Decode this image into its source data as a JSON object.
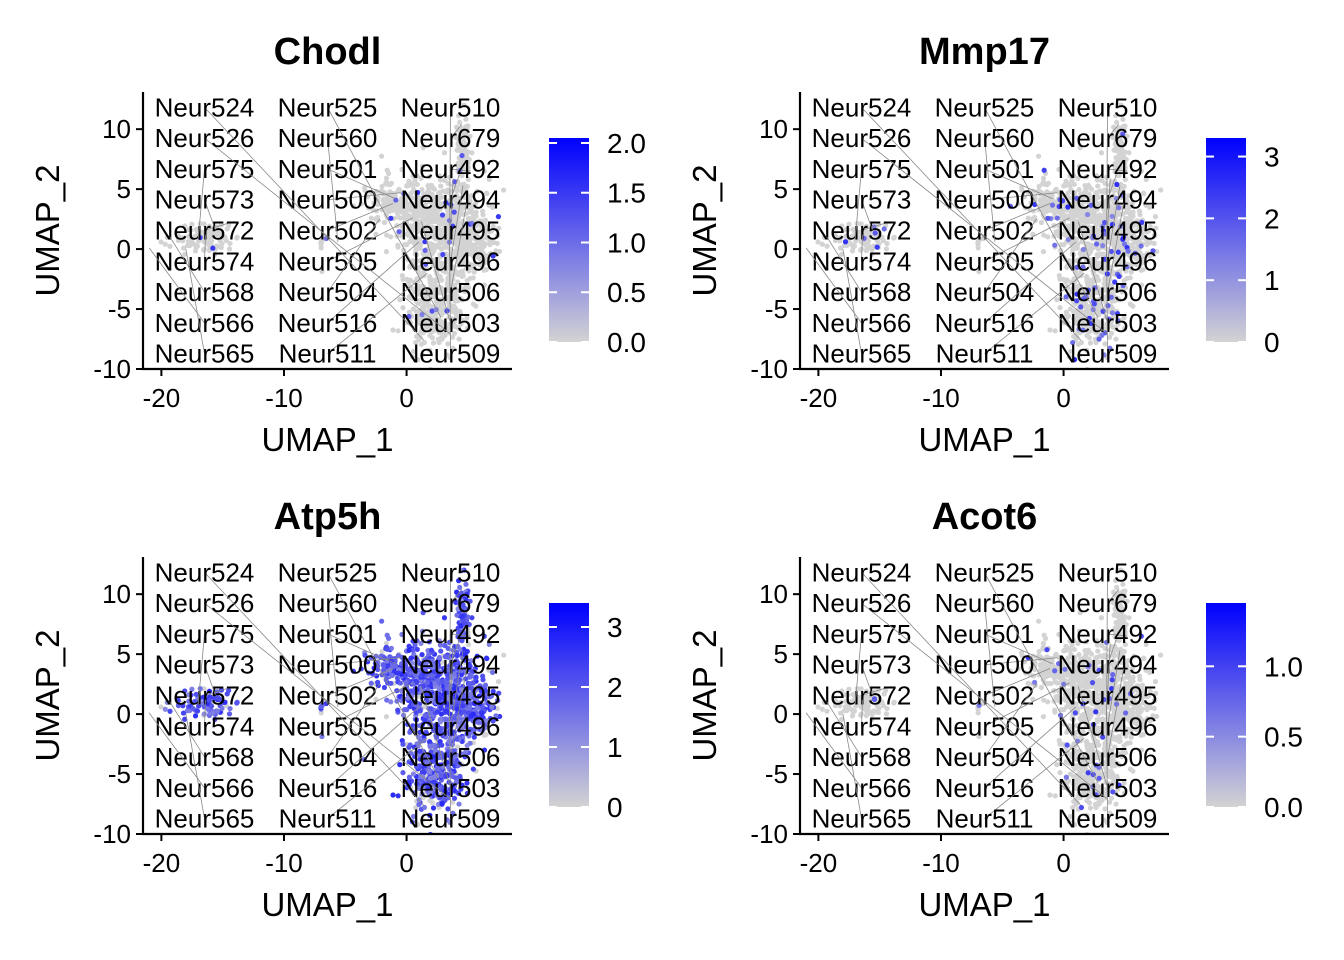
{
  "chart_data": [
    {
      "type": "scatter",
      "title": "Chodl",
      "xlabel": "UMAP_1",
      "ylabel": "UMAP_2",
      "xlim": [
        -21.5,
        8.6
      ],
      "ylim": [
        -10,
        13.1
      ],
      "xticks": [
        -20,
        -10,
        0
      ],
      "yticks": [
        10,
        5,
        0,
        -5,
        -10
      ],
      "legend": {
        "placement": "right",
        "min": 0,
        "max": 2.05,
        "ticks": [
          "0.0",
          "0.5",
          "1.0",
          "1.5",
          "2.0"
        ],
        "tick_values": [
          0,
          0.5,
          1,
          1.5,
          2
        ]
      },
      "expressed_fraction": 0.02
    },
    {
      "type": "scatter",
      "title": "Mmp17",
      "xlabel": "UMAP_1",
      "ylabel": "UMAP_2",
      "xlim": [
        -21.5,
        8.6
      ],
      "ylim": [
        -10,
        13.1
      ],
      "xticks": [
        -20,
        -10,
        0
      ],
      "yticks": [
        10,
        5,
        0,
        -5,
        -10
      ],
      "legend": {
        "placement": "right",
        "min": 0,
        "max": 3.3,
        "ticks": [
          "0",
          "1",
          "2",
          "3"
        ],
        "tick_values": [
          0,
          1,
          2,
          3
        ]
      },
      "expressed_fraction": 0.06
    },
    {
      "type": "scatter",
      "title": "Atp5h",
      "xlabel": "UMAP_1",
      "ylabel": "UMAP_2",
      "xlim": [
        -21.5,
        8.6
      ],
      "ylim": [
        -10,
        13.1
      ],
      "xticks": [
        -20,
        -10,
        0
      ],
      "yticks": [
        10,
        5,
        0,
        -5,
        -10
      ],
      "legend": {
        "placement": "right",
        "min": 0,
        "max": 3.4,
        "ticks": [
          "0",
          "1",
          "2",
          "3"
        ],
        "tick_values": [
          0,
          1,
          2,
          3
        ]
      },
      "expressed_fraction": 0.85
    },
    {
      "type": "scatter",
      "title": "Acot6",
      "xlabel": "UMAP_1",
      "ylabel": "UMAP_2",
      "xlim": [
        -21.5,
        8.6
      ],
      "ylim": [
        -10,
        13.1
      ],
      "xticks": [
        -20,
        -10,
        0
      ],
      "yticks": [
        10,
        5,
        0,
        -5,
        -10
      ],
      "legend": {
        "placement": "right",
        "min": 0,
        "max": 1.45,
        "ticks": [
          "0.0",
          "0.5",
          "1.0"
        ],
        "tick_values": [
          0,
          0.5,
          1
        ]
      },
      "expressed_fraction": 0.03
    }
  ],
  "cluster_labels": [
    {
      "text": "Neur679",
      "x": 4.5,
      "y": 10.4
    },
    {
      "text": "Neur492",
      "x": 5.2,
      "y": 6.5
    },
    {
      "text": "Neur494",
      "x": 4.3,
      "y": 6.2
    },
    {
      "text": "Neur495",
      "x": 3.8,
      "y": 5.9
    },
    {
      "text": "Neur496",
      "x": 4.6,
      "y": 5.3
    },
    {
      "text": "Neur506",
      "x": 4.9,
      "y": 3.8
    },
    {
      "text": "Neur500",
      "x": -0.5,
      "y": 4.7
    },
    {
      "text": "Neur501",
      "x": -0.9,
      "y": 4.2
    },
    {
      "text": "Neur502",
      "x": -1.1,
      "y": 3.8
    },
    {
      "text": "Neur504",
      "x": -2.2,
      "y": 2.5
    },
    {
      "text": "Neur505",
      "x": 0.5,
      "y": 2.6
    },
    {
      "text": "Neur503",
      "x": 1.2,
      "y": 2.3
    },
    {
      "text": "Neur572",
      "x": -14.1,
      "y": 2.3
    },
    {
      "text": "Neur573",
      "x": -15.6,
      "y": 1.6
    },
    {
      "text": "Neur574",
      "x": -16.4,
      "y": 1.2
    },
    {
      "text": "Neur575",
      "x": -17.0,
      "y": 0.8
    },
    {
      "text": "Neur509",
      "x": 3.5,
      "y": 1.1
    },
    {
      "text": "Neur516",
      "x": 1.0,
      "y": 0.6
    },
    {
      "text": "Neur560",
      "x": -5.6,
      "y": 0.6
    },
    {
      "text": "Neur510",
      "x": 3.5,
      "y": -0.9
    },
    {
      "text": "Neur511",
      "x": 1.7,
      "y": -2.0
    },
    {
      "text": "Neur525",
      "x": 2.8,
      "y": -5.7
    },
    {
      "text": "Neur526",
      "x": 3.6,
      "y": -7.1
    },
    {
      "text": "Neur524",
      "x": 1.4,
      "y": -7.6
    },
    {
      "text": "Neur568",
      "x": -19.3,
      "y": 1.0
    },
    {
      "text": "Neur565",
      "x": -18.0,
      "y": 0.0
    },
    {
      "text": "Neur566",
      "x": -21.0,
      "y": 0.1
    }
  ],
  "colors": {
    "low": "#D3D3D3",
    "high": "#0000FF",
    "expr": "#8A63F0"
  }
}
